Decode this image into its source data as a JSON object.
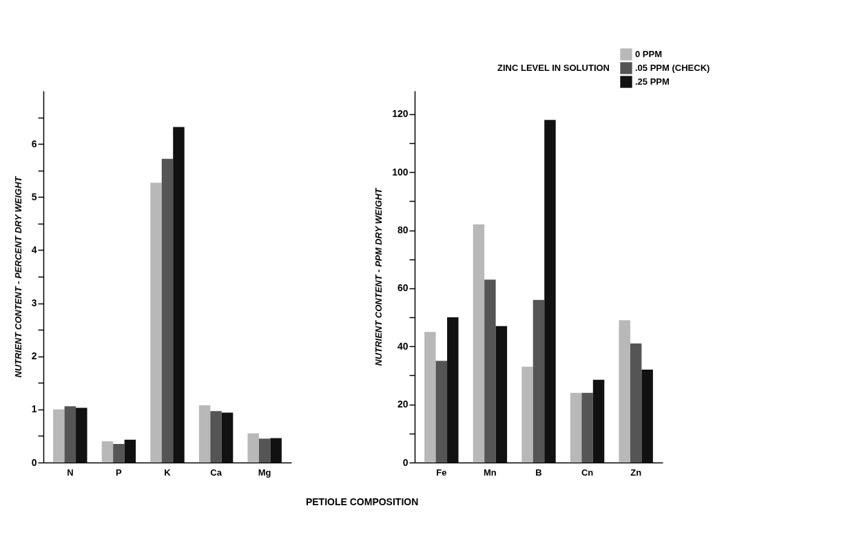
{
  "chart_data": [
    {
      "type": "bar",
      "xlabel": "PETIOLE COMPOSITION",
      "ylabel": "NUTRIENT CONTENT - PERCENT DRY WEIGHT",
      "categories": [
        "N",
        "P",
        "K",
        "Ca",
        "Mg"
      ],
      "series": [
        {
          "color": "#b8b8b8",
          "values": [
            1.0,
            0.4,
            5.27,
            1.08,
            0.55
          ]
        },
        {
          "color": "#555555",
          "values": [
            1.06,
            0.35,
            5.72,
            0.97,
            0.45
          ]
        },
        {
          "color": "#111111",
          "values": [
            1.03,
            0.43,
            6.32,
            0.94,
            0.46
          ]
        }
      ],
      "ylim": [
        0,
        7
      ],
      "yticks": [
        0,
        {
          "value": 0.5,
          "label": null
        },
        1,
        {
          "value": 1.5,
          "label": null
        },
        2,
        {
          "value": 2.5,
          "label": null
        },
        3,
        {
          "value": 3.5,
          "label": null
        },
        4,
        {
          "value": 4.5,
          "label": null
        },
        5,
        {
          "value": 5.5,
          "label": null
        },
        6,
        {
          "value": 6.5,
          "label": null
        }
      ],
      "grid": false,
      "legend": false
    },
    {
      "type": "bar",
      "ylabel": "NUTRIENT CONTENT - PPM DRY WEIGHT",
      "legend_title": "ZINC LEVEL IN SOLUTION",
      "categories": [
        "Fe",
        "Mn",
        "B",
        "Cn",
        "Zn"
      ],
      "series": [
        {
          "name": "0 PPM",
          "color": "#b8b8b8",
          "values": [
            45,
            82,
            33,
            24,
            49
          ]
        },
        {
          "name": ".05 PPM (CHECK)",
          "color": "#555555",
          "values": [
            35,
            63,
            56,
            24,
            41
          ]
        },
        {
          "name": ".25 PPM",
          "color": "#111111",
          "values": [
            50,
            47,
            118,
            28.5,
            32
          ]
        }
      ],
      "ylim": [
        0,
        128
      ],
      "yticks": [
        0,
        {
          "value": 10,
          "label": null
        },
        20,
        {
          "value": 30,
          "label": null
        },
        40,
        {
          "value": 50,
          "label": null
        },
        60,
        {
          "value": 70,
          "label": null
        },
        80,
        {
          "value": 90,
          "label": null
        },
        100,
        {
          "value": 110,
          "label": null
        },
        120
      ],
      "grid": false,
      "legend": "top right"
    }
  ]
}
